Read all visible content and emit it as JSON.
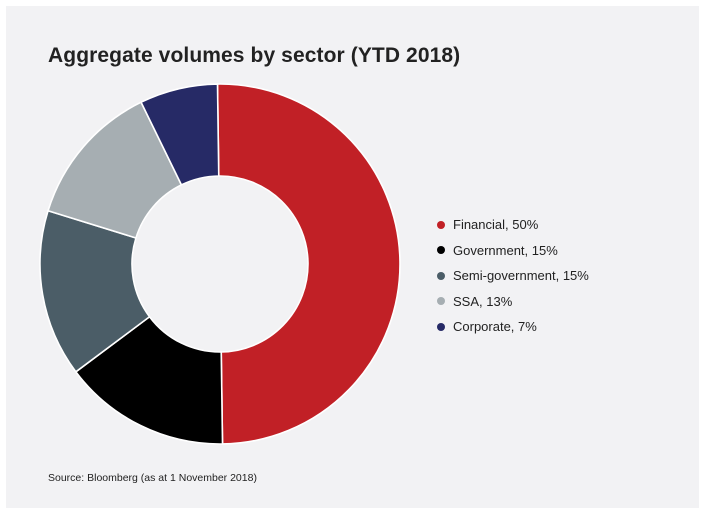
{
  "chart_data": {
    "type": "pie",
    "variant": "donut",
    "title": "Aggregate volumes by sector (YTD 2018)",
    "slices": [
      {
        "label": "Financial",
        "value": 50,
        "color": "#c12026",
        "legend_text": "Financial, 50%"
      },
      {
        "label": "Government",
        "value": 15,
        "color": "#000000",
        "legend_text": "Government, 15%"
      },
      {
        "label": "Semi-government",
        "value": 15,
        "color": "#4b5d67",
        "legend_text": "Semi-government, 15%"
      },
      {
        "label": "SSA",
        "value": 13,
        "color": "#a6aeb2",
        "legend_text": "SSA, 13%"
      },
      {
        "label": "Corporate",
        "value": 7,
        "color": "#262a66",
        "legend_text": "Corporate, 7%"
      }
    ],
    "legend_position": "right",
    "source": "Source: Bloomberg (as at 1 November 2018)"
  }
}
